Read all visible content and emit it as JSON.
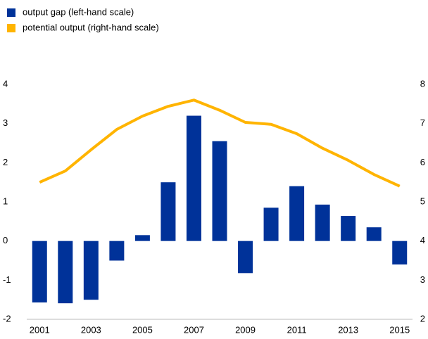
{
  "chart_data": {
    "type": "bar_line",
    "categories": [
      "2001",
      null,
      "2003",
      null,
      "2005",
      null,
      "2007",
      null,
      "2009",
      null,
      "2011",
      null,
      "2013",
      null,
      "2015"
    ],
    "series": [
      {
        "name": "output gap (left-hand scale)",
        "color": "#003299",
        "type": "bar",
        "values": [
          -1.57,
          -1.59,
          -1.5,
          -0.5,
          0.15,
          1.5,
          3.2,
          2.55,
          -0.82,
          0.85,
          1.4,
          0.93,
          0.64,
          0.35,
          -0.6
        ]
      },
      {
        "name": "potential output (right-hand scale)",
        "color": "#ffb400",
        "type": "line",
        "axis": "y2",
        "values": [
          5.5,
          5.79,
          6.33,
          6.85,
          7.19,
          7.44,
          7.6,
          7.34,
          7.03,
          6.98,
          6.74,
          6.37,
          6.06,
          5.7,
          5.4
        ]
      }
    ],
    "ylim": [
      -2,
      4
    ],
    "yticks": [
      -2,
      -1,
      0,
      1,
      2,
      3,
      4
    ],
    "y2lim": [
      2,
      8
    ],
    "y2ticks": [
      2,
      3,
      4,
      5,
      6,
      7,
      8
    ],
    "legend": "top-left",
    "grid": false
  }
}
